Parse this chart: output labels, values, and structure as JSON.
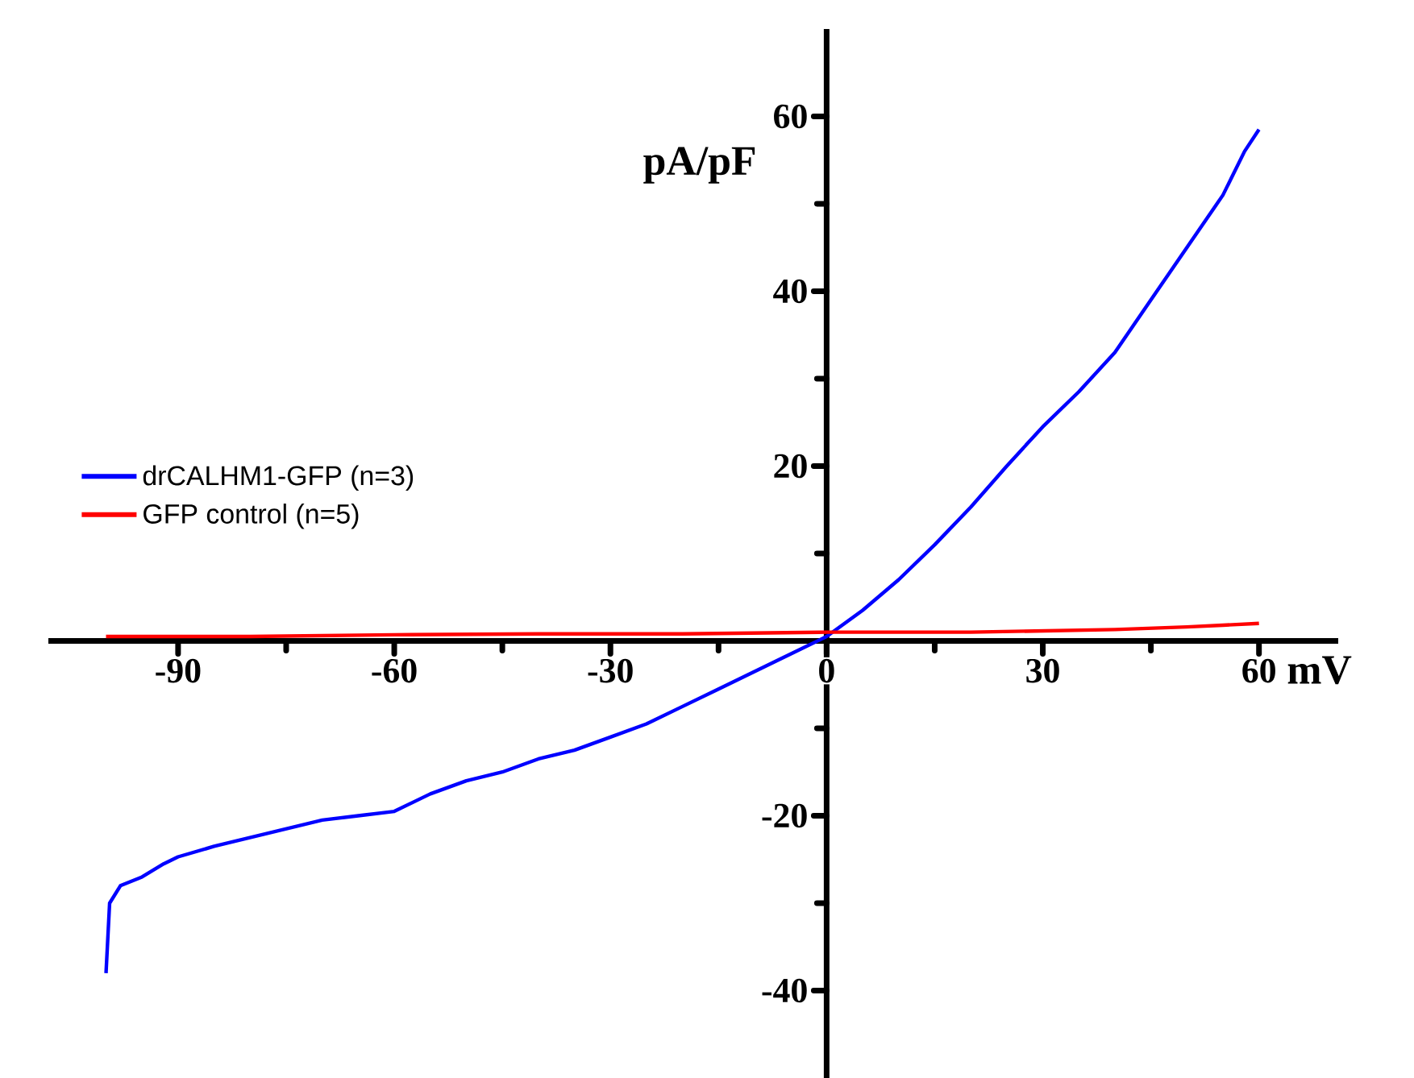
{
  "chart_data": {
    "type": "line",
    "xlabel": "mV",
    "ylabel": "pA/pF",
    "xlim": [
      -108,
      71
    ],
    "ylim": [
      -50,
      70
    ],
    "xticks": [
      -90,
      -60,
      -30,
      0,
      30,
      60
    ],
    "yticks": [
      -40,
      -20,
      {
        "value": 0,
        "label": null
      },
      20,
      40,
      60
    ],
    "legend": "left",
    "marker": "none",
    "line_style": "solid",
    "grid": false,
    "series": [
      {
        "name": "drCALHM1-GFP (n=3)",
        "color": "#0000ff",
        "x": [
          -100,
          -99.5,
          -98,
          -95,
          -92,
          -90,
          -85,
          -80,
          -75,
          -70,
          -65,
          -60,
          -55,
          -50,
          -45,
          -40,
          -35,
          -30,
          -25,
          -20,
          -15,
          -10,
          -5,
          0,
          5,
          10,
          15,
          20,
          25,
          30,
          35,
          40,
          45,
          50,
          55,
          58,
          60
        ],
        "values": [
          -38,
          -30,
          -28,
          -27,
          -25.5,
          -24.7,
          -23.5,
          -22.5,
          -21.5,
          -20.5,
          -20,
          -19.5,
          -17.5,
          -16,
          -15,
          -13.5,
          -12.5,
          -11,
          -9.5,
          -7.5,
          -5.5,
          -3.5,
          -1.5,
          0.5,
          3.5,
          7,
          11,
          15.3,
          20,
          24.5,
          28.5,
          33,
          39,
          45,
          51,
          56,
          58.5
        ]
      },
      {
        "name": "GFP control (n=5)",
        "color": "#ff0000",
        "x": [
          -100,
          -80,
          -60,
          -40,
          -20,
          0,
          20,
          40,
          50,
          55,
          60
        ],
        "values": [
          0.5,
          0.5,
          0.7,
          0.8,
          0.8,
          1,
          1,
          1.3,
          1.6,
          1.8,
          2
        ]
      }
    ]
  }
}
